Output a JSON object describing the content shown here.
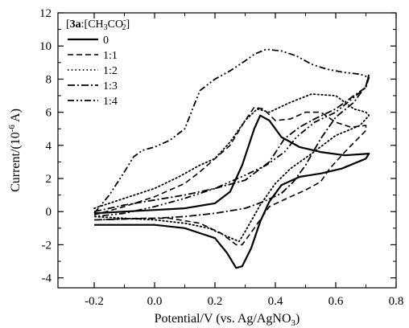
{
  "chart_data": {
    "type": "line",
    "chart_kind": "cyclic voltammogram",
    "xlabel": {
      "main": "Potential/V (vs. Ag/AgNO",
      "sub": "3",
      "tail": ")"
    },
    "ylabel": {
      "main": "Current/(10",
      "sup": "-6",
      "tail": " A)"
    },
    "xlim": [
      -0.32,
      0.8
    ],
    "ylim": [
      -4.6,
      12
    ],
    "x_ticks": [
      -0.2,
      0.0,
      0.2,
      0.4,
      0.6,
      0.8
    ],
    "x_tick_labels": [
      "-0.2",
      "0.0",
      "0.2",
      "0.4",
      "0.6",
      "0.8"
    ],
    "y_ticks": [
      -4,
      -2,
      0,
      2,
      4,
      6,
      8,
      10,
      12
    ],
    "y_tick_labels": [
      "-4",
      "-2",
      "0",
      "2",
      "4",
      "6",
      "8",
      "10",
      "12"
    ],
    "grid": false,
    "legend": {
      "placement": "top-left",
      "title": {
        "bold": "3a",
        "text": ":[CH",
        "sub1": "3",
        "text2": "CO",
        "sub2": "2",
        "sup2": "-",
        "text3": "]"
      }
    },
    "series": [
      {
        "name": "0",
        "dash": "solid",
        "stroke_width": 2.2,
        "points": [
          [
            -0.2,
            -0.1
          ],
          [
            -0.1,
            0.0
          ],
          [
            0.0,
            0.1
          ],
          [
            0.1,
            0.2
          ],
          [
            0.2,
            0.5
          ],
          [
            0.25,
            1.2
          ],
          [
            0.29,
            2.8
          ],
          [
            0.33,
            5.0
          ],
          [
            0.35,
            5.8
          ],
          [
            0.38,
            5.5
          ],
          [
            0.42,
            4.5
          ],
          [
            0.48,
            3.9
          ],
          [
            0.55,
            3.6
          ],
          [
            0.63,
            3.4
          ],
          [
            0.71,
            3.5
          ],
          [
            0.7,
            3.2
          ],
          [
            0.62,
            2.6
          ],
          [
            0.55,
            2.3
          ],
          [
            0.48,
            2.1
          ],
          [
            0.42,
            1.6
          ],
          [
            0.38,
            0.6
          ],
          [
            0.35,
            -0.6
          ],
          [
            0.32,
            -2.2
          ],
          [
            0.29,
            -3.3
          ],
          [
            0.27,
            -3.4
          ],
          [
            0.24,
            -2.5
          ],
          [
            0.2,
            -1.6
          ],
          [
            0.1,
            -1.0
          ],
          [
            0.0,
            -0.8
          ],
          [
            -0.1,
            -0.8
          ],
          [
            -0.2,
            -0.8
          ]
        ]
      },
      {
        "name": "1:1",
        "dash": "dashed",
        "stroke_width": 1.6,
        "points": [
          [
            -0.2,
            -0.2
          ],
          [
            -0.1,
            0.3
          ],
          [
            0.0,
            0.9
          ],
          [
            0.1,
            1.7
          ],
          [
            0.15,
            2.4
          ],
          [
            0.2,
            3.2
          ],
          [
            0.25,
            4.0
          ],
          [
            0.3,
            5.5
          ],
          [
            0.33,
            6.3
          ],
          [
            0.36,
            6.2
          ],
          [
            0.4,
            5.5
          ],
          [
            0.45,
            5.6
          ],
          [
            0.5,
            6.0
          ],
          [
            0.55,
            6.0
          ],
          [
            0.6,
            5.4
          ],
          [
            0.65,
            5.1
          ],
          [
            0.7,
            5.2
          ],
          [
            0.7,
            4.9
          ],
          [
            0.63,
            3.6
          ],
          [
            0.58,
            2.6
          ],
          [
            0.55,
            1.8
          ],
          [
            0.5,
            1.3
          ],
          [
            0.45,
            0.9
          ],
          [
            0.38,
            0.3
          ],
          [
            0.33,
            -1.0
          ],
          [
            0.29,
            -2.0
          ],
          [
            0.27,
            -2.0
          ],
          [
            0.22,
            -1.3
          ],
          [
            0.15,
            -0.7
          ],
          [
            0.05,
            -0.4
          ],
          [
            -0.05,
            -0.4
          ],
          [
            -0.2,
            -0.5
          ]
        ]
      },
      {
        "name": "1:2",
        "dash": "dotted",
        "stroke_width": 1.8,
        "points": [
          [
            -0.2,
            0.2
          ],
          [
            -0.1,
            0.8
          ],
          [
            0.0,
            1.4
          ],
          [
            0.08,
            2.1
          ],
          [
            0.15,
            2.8
          ],
          [
            0.2,
            3.2
          ],
          [
            0.25,
            4.2
          ],
          [
            0.3,
            5.5
          ],
          [
            0.34,
            6.2
          ],
          [
            0.38,
            6.0
          ],
          [
            0.45,
            6.6
          ],
          [
            0.52,
            7.1
          ],
          [
            0.6,
            7.0
          ],
          [
            0.66,
            6.2
          ],
          [
            0.7,
            6.0
          ],
          [
            0.71,
            5.8
          ],
          [
            0.68,
            5.2
          ],
          [
            0.6,
            4.6
          ],
          [
            0.52,
            3.5
          ],
          [
            0.45,
            2.6
          ],
          [
            0.4,
            1.7
          ],
          [
            0.35,
            0.4
          ],
          [
            0.3,
            -1.2
          ],
          [
            0.28,
            -1.8
          ],
          [
            0.24,
            -1.5
          ],
          [
            0.18,
            -1.0
          ],
          [
            0.1,
            -0.7
          ],
          [
            0.0,
            -0.5
          ],
          [
            -0.1,
            -0.4
          ],
          [
            -0.2,
            -0.3
          ]
        ]
      },
      {
        "name": "1:3",
        "dash": "dashdot",
        "stroke_width": 1.8,
        "points": [
          [
            -0.2,
            0.0
          ],
          [
            -0.1,
            0.4
          ],
          [
            0.0,
            0.7
          ],
          [
            0.1,
            1.0
          ],
          [
            0.2,
            1.4
          ],
          [
            0.3,
            1.9
          ],
          [
            0.38,
            3.0
          ],
          [
            0.43,
            4.4
          ],
          [
            0.48,
            5.1
          ],
          [
            0.53,
            5.6
          ],
          [
            0.6,
            6.2
          ],
          [
            0.66,
            7.0
          ],
          [
            0.7,
            7.5
          ],
          [
            0.71,
            8.3
          ],
          [
            0.7,
            7.6
          ],
          [
            0.66,
            6.6
          ],
          [
            0.6,
            5.7
          ],
          [
            0.55,
            4.4
          ],
          [
            0.5,
            2.8
          ],
          [
            0.46,
            1.8
          ],
          [
            0.42,
            1.1
          ],
          [
            0.36,
            0.6
          ],
          [
            0.3,
            0.2
          ],
          [
            0.2,
            -0.1
          ],
          [
            0.1,
            -0.3
          ],
          [
            0.0,
            -0.4
          ],
          [
            -0.2,
            -0.5
          ]
        ]
      },
      {
        "name": "1:4",
        "dash": "dashdotdot",
        "stroke_width": 1.8,
        "points": [
          [
            -0.2,
            -0.1
          ],
          [
            -0.15,
            1.0
          ],
          [
            -0.1,
            2.4
          ],
          [
            -0.07,
            3.3
          ],
          [
            -0.04,
            3.7
          ],
          [
            0.0,
            3.9
          ],
          [
            0.05,
            4.3
          ],
          [
            0.1,
            5.0
          ],
          [
            0.15,
            7.3
          ],
          [
            0.2,
            8.0
          ],
          [
            0.25,
            8.5
          ],
          [
            0.3,
            9.1
          ],
          [
            0.33,
            9.5
          ],
          [
            0.37,
            9.8
          ],
          [
            0.42,
            9.7
          ],
          [
            0.47,
            9.4
          ],
          [
            0.52,
            8.9
          ],
          [
            0.57,
            8.6
          ],
          [
            0.63,
            8.4
          ],
          [
            0.68,
            8.3
          ],
          [
            0.71,
            8.1
          ],
          [
            0.7,
            7.5
          ],
          [
            0.66,
            6.9
          ],
          [
            0.6,
            6.0
          ],
          [
            0.53,
            5.4
          ],
          [
            0.47,
            4.5
          ],
          [
            0.43,
            3.6
          ],
          [
            0.37,
            2.8
          ],
          [
            0.3,
            2.2
          ],
          [
            0.2,
            1.4
          ],
          [
            0.1,
            0.8
          ],
          [
            0.0,
            0.3
          ],
          [
            -0.1,
            -0.1
          ],
          [
            -0.2,
            -0.3
          ]
        ]
      }
    ]
  }
}
